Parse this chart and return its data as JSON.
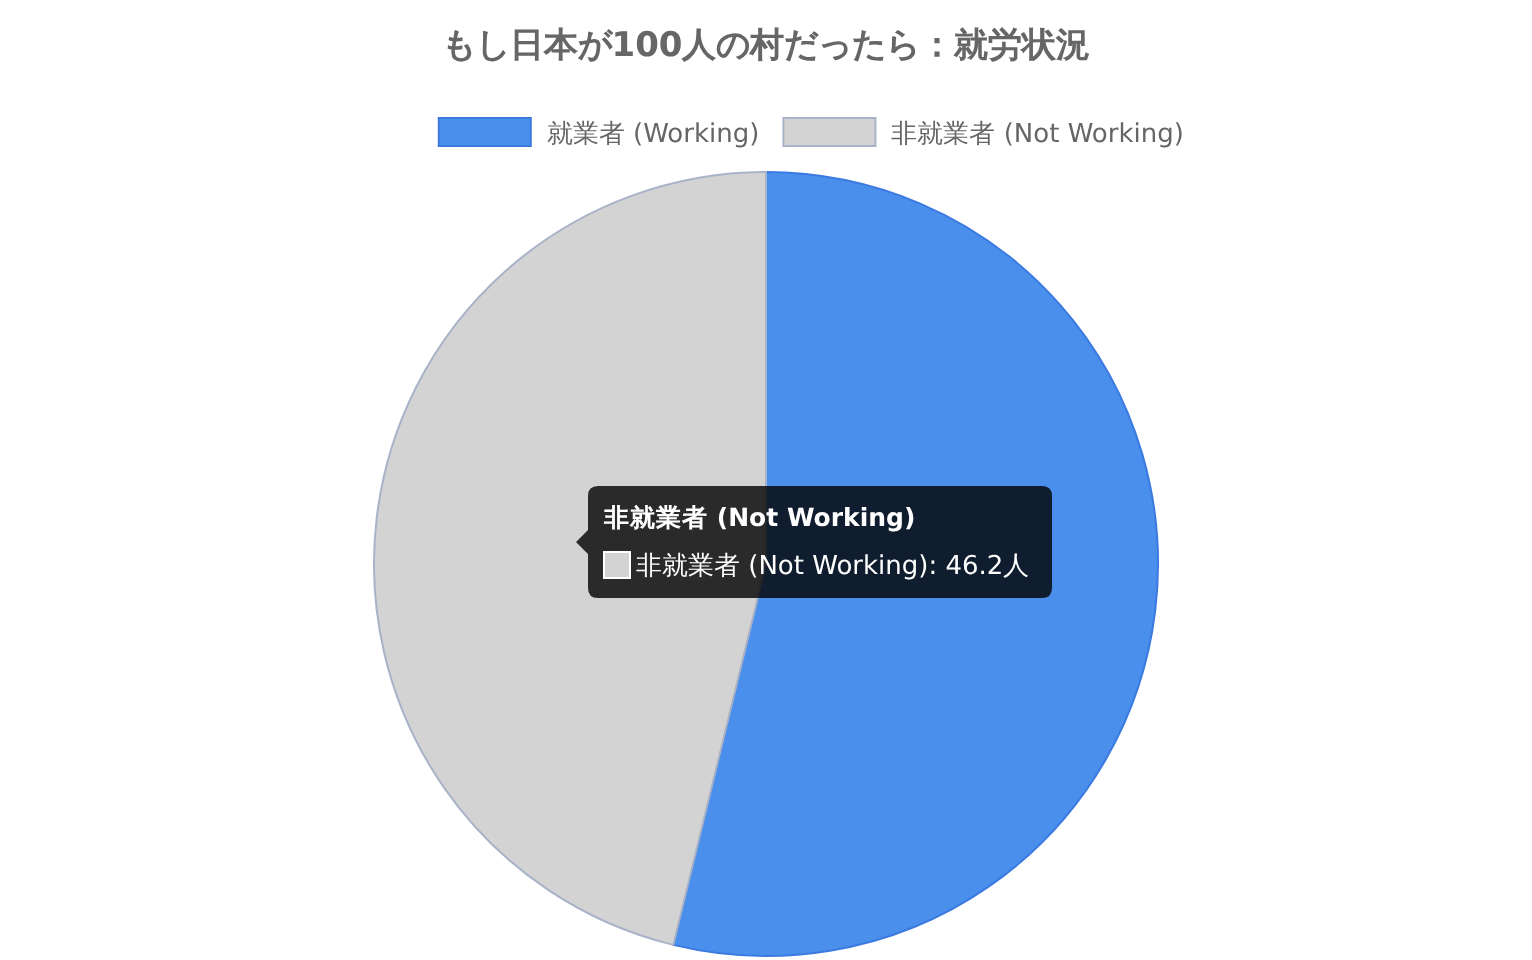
{
  "chart_data": {
    "type": "pie",
    "title": "もし日本が100人の村だったら：就労状況",
    "categories": [
      "就業者 (Working)",
      "非就業者 (Not Working)"
    ],
    "values": [
      53.8,
      46.2
    ],
    "colors": [
      "#4a8fec",
      "#d3d3d3"
    ],
    "legend": "top",
    "annotations": [
      "非就業者 (Not Working)",
      "非就業者 (Not Working): 46.2人"
    ]
  }
}
